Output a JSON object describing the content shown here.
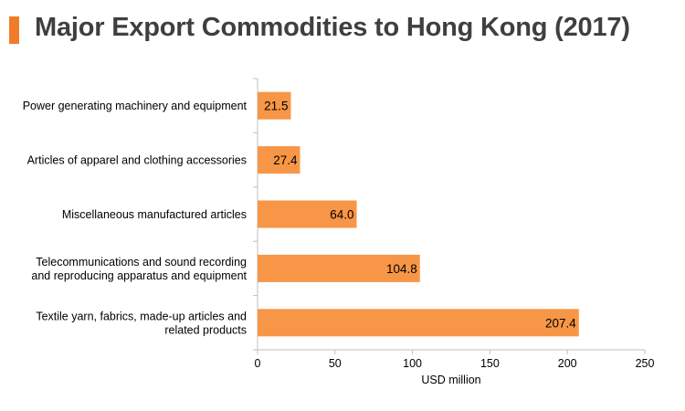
{
  "title": "Major Export Commodities to Hong Kong (2017)",
  "colors": {
    "bar": "#f79646",
    "accent": "#f07c28",
    "axis": "#bfbfbf",
    "text": "#000000",
    "title": "#3f3f3f"
  },
  "chart_data": {
    "type": "bar",
    "orientation": "horizontal",
    "title": "Major Export Commodities to Hong Kong (2017)",
    "xlabel": "USD million",
    "ylabel": "",
    "xlim": [
      0,
      250
    ],
    "x_ticks": [
      0,
      50,
      100,
      150,
      200,
      250
    ],
    "grid": false,
    "legend": "none",
    "categories": [
      [
        "Power generating machinery and equipment"
      ],
      [
        "Articles of apparel and clothing accessories"
      ],
      [
        "Miscellaneous manufactured articles"
      ],
      [
        "Telecommunications and sound recording",
        "and reproducing apparatus and equipment"
      ],
      [
        "Textile yarn, fabrics, made-up articles and",
        "related products"
      ]
    ],
    "values": [
      21.5,
      27.4,
      64.0,
      104.8,
      207.4
    ],
    "data_labels": [
      "21.5",
      "27.4",
      "64.0",
      "104.8",
      "207.4"
    ]
  }
}
